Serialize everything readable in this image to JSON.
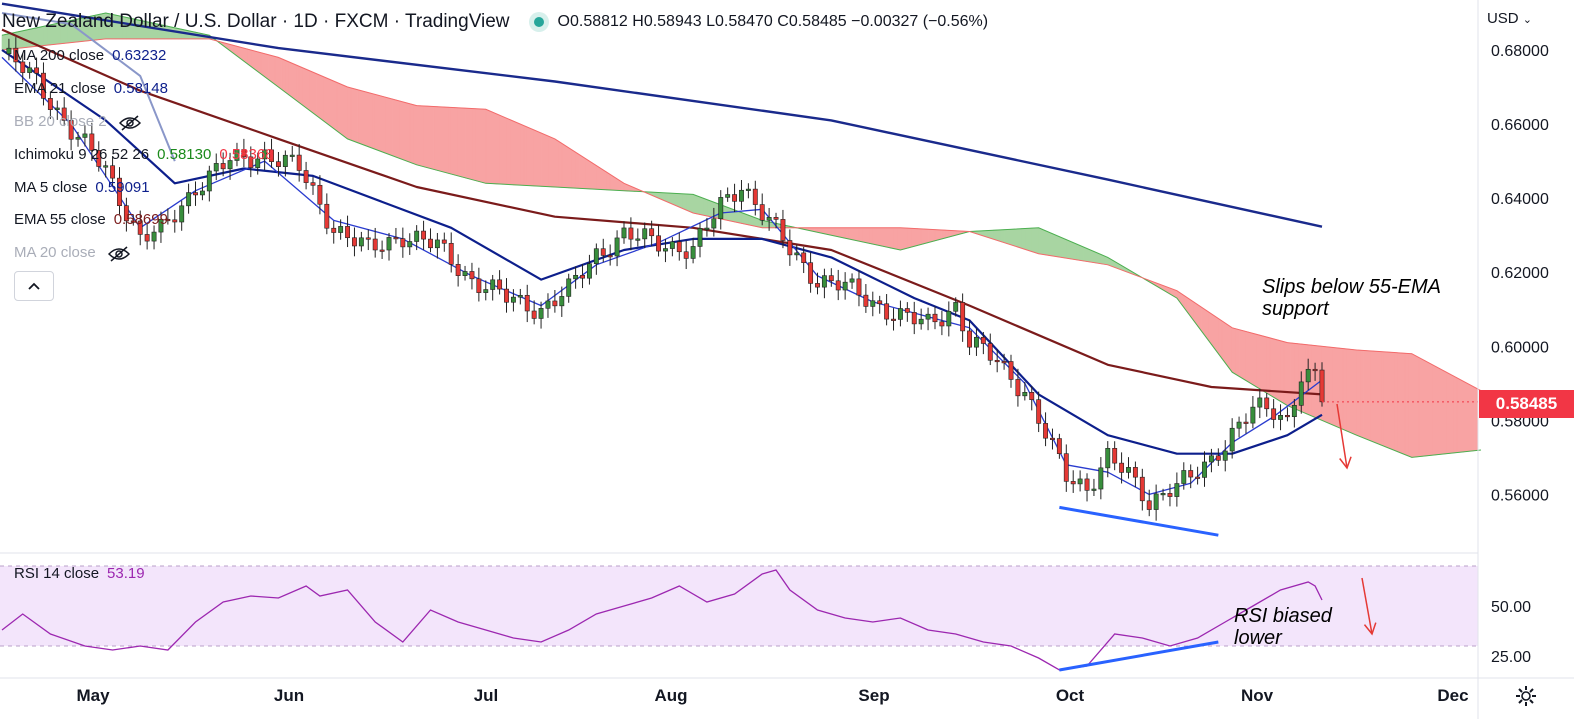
{
  "header": {
    "title": "New Zealand Dollar / U.S. Dollar · 1D · FXCM · TradingView",
    "ohlc": "O0.58812 H0.58943 L0.58470 C0.58485 −0.00327 (−0.56%)"
  },
  "currency_selector": "USD",
  "legend": [
    {
      "label": "MA 200 close",
      "value": "0.63232",
      "color": "#0d1f8c",
      "visible": true
    },
    {
      "label": "EMA 21 close",
      "value": "0.58148",
      "color": "#0d1f8c",
      "visible": true
    },
    {
      "label": "BB 20 close 2",
      "value": "",
      "color": "#a9adb8",
      "visible": false
    },
    {
      "label": "Ichimoku 9 26 52 26",
      "value": "0.58130",
      "value2": "0.58368",
      "color": "#1b8a1b",
      "color2": "#f23645",
      "visible": true
    },
    {
      "label": "MA 5 close",
      "value": "0.59091",
      "color": "#0d1f8c",
      "visible": true
    },
    {
      "label": "EMA 55 close",
      "value": "0.58699",
      "color": "#7b1b1b",
      "visible": true
    },
    {
      "label": "MA 20 close",
      "value": "",
      "color": "#a9adb8",
      "visible": false
    }
  ],
  "rsi_legend": {
    "label": "RSI 14 close",
    "value": "53.19",
    "color": "#9c27b0"
  },
  "last_price_tag": "0.58485",
  "annotations": {
    "ema_note_line1": "Slips below 55-EMA",
    "ema_note_line2": "support",
    "rsi_note_line1": "RSI biased",
    "rsi_note_line2": "lower"
  },
  "colors": {
    "up": "#388e3c",
    "down": "#e53935",
    "ma200": "#1a2a8c",
    "ema21": "#0d1f8c",
    "ema55": "#7b1b1b",
    "ma5": "#2a3ccf",
    "cloud_bear": "#f8a3a3",
    "cloud_bull": "#a8d5a2",
    "rsi": "#9c27b0",
    "rsi_band": "#f3e5fb",
    "divergence": "#2962ff",
    "arrow": "#e53935",
    "bb": "#8a97c9"
  },
  "chart_data": [
    {
      "type": "candlestick",
      "title": "New Zealand Dollar / U.S. Dollar · 1D · FXCM · TradingView",
      "x_ticks": [
        "May",
        "Jun",
        "Jul",
        "Aug",
        "Sep",
        "Oct",
        "Nov",
        "Dec"
      ],
      "y_ticks": [
        "0.68000",
        "0.66000",
        "0.64000",
        "0.62000",
        "0.60000",
        "0.58000",
        "0.56000"
      ],
      "ylim": [
        0.545,
        0.6935
      ],
      "grid": false,
      "close_path": [
        [
          0,
          0.679
        ],
        [
          5,
          0.672
        ],
        [
          10,
          0.658
        ],
        [
          15,
          0.648
        ],
        [
          20,
          0.629
        ],
        [
          23,
          0.631
        ],
        [
          28,
          0.643
        ],
        [
          33,
          0.65
        ],
        [
          38,
          0.652
        ],
        [
          43,
          0.648
        ],
        [
          48,
          0.632
        ],
        [
          53,
          0.626
        ],
        [
          58,
          0.63
        ],
        [
          63,
          0.627
        ],
        [
          68,
          0.618
        ],
        [
          73,
          0.613
        ],
        [
          78,
          0.61
        ],
        [
          82,
          0.615
        ],
        [
          86,
          0.625
        ],
        [
          90,
          0.63
        ],
        [
          95,
          0.628
        ],
        [
          100,
          0.626
        ],
        [
          104,
          0.638
        ],
        [
          107,
          0.644
        ],
        [
          110,
          0.636
        ],
        [
          114,
          0.626
        ],
        [
          118,
          0.618
        ],
        [
          122,
          0.616
        ],
        [
          126,
          0.612
        ],
        [
          130,
          0.608
        ],
        [
          134,
          0.606
        ],
        [
          138,
          0.611
        ],
        [
          140,
          0.601
        ],
        [
          144,
          0.596
        ],
        [
          148,
          0.588
        ],
        [
          151,
          0.576
        ],
        [
          154,
          0.565
        ],
        [
          157,
          0.562
        ],
        [
          160,
          0.57
        ],
        [
          163,
          0.565
        ],
        [
          166,
          0.558
        ],
        [
          169,
          0.562
        ],
        [
          172,
          0.564
        ],
        [
          175,
          0.569
        ],
        [
          178,
          0.577
        ],
        [
          181,
          0.583
        ],
        [
          184,
          0.582
        ],
        [
          186,
          0.58
        ],
        [
          188,
          0.593
        ],
        [
          190,
          0.592
        ],
        [
          191,
          0.585
        ]
      ],
      "candle_range": [
        0,
        191
      ],
      "series": [
        {
          "name": "MA 200 close",
          "points": [
            [
              0,
              0.6925
            ],
            [
              40,
              0.6805
            ],
            [
              80,
              0.6715
            ],
            [
              120,
              0.661
            ],
            [
              160,
              0.645
            ],
            [
              191,
              0.6323
            ]
          ]
        },
        {
          "name": "EMA 55 close",
          "points": [
            [
              0,
              0.6855
            ],
            [
              20,
              0.669
            ],
            [
              40,
              0.656
            ],
            [
              60,
              0.643
            ],
            [
              80,
              0.635
            ],
            [
              100,
              0.632
            ],
            [
              120,
              0.626
            ],
            [
              140,
              0.611
            ],
            [
              160,
              0.595
            ],
            [
              175,
              0.589
            ],
            [
              191,
              0.587
            ]
          ]
        },
        {
          "name": "EMA 21 close",
          "points": [
            [
              0,
              0.68
            ],
            [
              15,
              0.661
            ],
            [
              25,
              0.644
            ],
            [
              35,
              0.648
            ],
            [
              45,
              0.646
            ],
            [
              55,
              0.639
            ],
            [
              65,
              0.632
            ],
            [
              78,
              0.618
            ],
            [
              90,
              0.626
            ],
            [
              100,
              0.629
            ],
            [
              110,
              0.629
            ],
            [
              120,
              0.624
            ],
            [
              132,
              0.613
            ],
            [
              140,
              0.607
            ],
            [
              150,
              0.587
            ],
            [
              160,
              0.576
            ],
            [
              170,
              0.571
            ],
            [
              178,
              0.571
            ],
            [
              186,
              0.576
            ],
            [
              191,
              0.5815
            ]
          ]
        },
        {
          "name": "MA 5 close",
          "points": [
            [
              0,
              0.678
            ],
            [
              10,
              0.66
            ],
            [
              20,
              0.632
            ],
            [
              28,
              0.642
            ],
            [
              38,
              0.65
            ],
            [
              48,
              0.634
            ],
            [
              58,
              0.629
            ],
            [
              68,
              0.619
            ],
            [
              78,
              0.611
            ],
            [
              86,
              0.622
            ],
            [
              95,
              0.628
            ],
            [
              104,
              0.636
            ],
            [
              110,
              0.637
            ],
            [
              118,
              0.619
            ],
            [
              126,
              0.612
            ],
            [
              134,
              0.608
            ],
            [
              140,
              0.605
            ],
            [
              148,
              0.59
            ],
            [
              154,
              0.568
            ],
            [
              160,
              0.566
            ],
            [
              166,
              0.56
            ],
            [
              172,
              0.563
            ],
            [
              178,
              0.574
            ],
            [
              184,
              0.581
            ],
            [
              191,
              0.5909
            ]
          ]
        },
        {
          "name": "Ichimoku Span A",
          "points": [
            [
              0,
              0.684
            ],
            [
              15,
              0.69
            ],
            [
              30,
              0.684
            ],
            [
              40,
              0.67
            ],
            [
              50,
              0.656
            ],
            [
              60,
              0.649
            ],
            [
              70,
              0.644
            ],
            [
              80,
              0.643
            ],
            [
              90,
              0.642
            ],
            [
              100,
              0.641
            ],
            [
              110,
              0.634
            ],
            [
              120,
              0.63
            ],
            [
              130,
              0.626
            ],
            [
              140,
              0.631
            ],
            [
              150,
              0.632
            ],
            [
              160,
              0.624
            ],
            [
              170,
              0.613
            ],
            [
              178,
              0.593
            ],
            [
              186,
              0.584
            ],
            [
              196,
              0.576
            ],
            [
              204,
              0.57
            ],
            [
              214,
              0.572
            ]
          ]
        },
        {
          "name": "Ichimoku Span B",
          "points": [
            [
              0,
              0.68
            ],
            [
              15,
              0.683
            ],
            [
              30,
              0.683
            ],
            [
              40,
              0.678
            ],
            [
              50,
              0.67
            ],
            [
              60,
              0.665
            ],
            [
              70,
              0.664
            ],
            [
              80,
              0.656
            ],
            [
              90,
              0.644
            ],
            [
              100,
              0.636
            ],
            [
              110,
              0.632
            ],
            [
              120,
              0.632
            ],
            [
              130,
              0.632
            ],
            [
              140,
              0.631
            ],
            [
              150,
              0.625
            ],
            [
              160,
              0.622
            ],
            [
              170,
              0.615
            ],
            [
              178,
              0.605
            ],
            [
              186,
              0.601
            ],
            [
              196,
              0.599
            ],
            [
              204,
              0.598
            ],
            [
              214,
              0.588
            ]
          ]
        },
        {
          "name": "BB 20 close 2",
          "points": [
            [
              0,
              0.69
            ],
            [
              10,
              0.687
            ],
            [
              20,
              0.673
            ],
            [
              25,
              0.65
            ]
          ]
        }
      ],
      "divergence_line": [
        [
          153,
          0.5565
        ],
        [
          176,
          0.549
        ]
      ]
    },
    {
      "type": "line",
      "title": "RSI 14 close",
      "y_ticks": [
        "50.00",
        "25.00"
      ],
      "ylim": [
        15,
        75
      ],
      "band": [
        30,
        70
      ],
      "series": [
        {
          "name": "RSI 14 close",
          "points": [
            [
              0,
              38
            ],
            [
              3,
              46
            ],
            [
              7,
              36
            ],
            [
              12,
              30
            ],
            [
              16,
              28
            ],
            [
              20,
              30
            ],
            [
              24,
              28
            ],
            [
              28,
              42
            ],
            [
              32,
              52
            ],
            [
              36,
              55
            ],
            [
              40,
              54
            ],
            [
              44,
              60
            ],
            [
              46,
              55
            ],
            [
              50,
              58
            ],
            [
              54,
              42
            ],
            [
              58,
              32
            ],
            [
              62,
              48
            ],
            [
              66,
              42
            ],
            [
              70,
              38
            ],
            [
              74,
              34
            ],
            [
              78,
              32
            ],
            [
              82,
              38
            ],
            [
              86,
              46
            ],
            [
              90,
              50
            ],
            [
              94,
              54
            ],
            [
              98,
              60
            ],
            [
              102,
              52
            ],
            [
              106,
              56
            ],
            [
              110,
              66
            ],
            [
              112,
              68
            ],
            [
              114,
              58
            ],
            [
              118,
              48
            ],
            [
              122,
              44
            ],
            [
              126,
              42
            ],
            [
              130,
              44
            ],
            [
              134,
              38
            ],
            [
              138,
              36
            ],
            [
              142,
              32
            ],
            [
              146,
              30
            ],
            [
              150,
              24
            ],
            [
              153,
              18
            ],
            [
              157,
              20
            ],
            [
              161,
              36
            ],
            [
              165,
              34
            ],
            [
              169,
              30
            ],
            [
              173,
              34
            ],
            [
              177,
              42
            ],
            [
              181,
              50
            ],
            [
              185,
              58
            ],
            [
              189,
              62
            ],
            [
              190,
              60
            ],
            [
              191,
              53
            ]
          ]
        }
      ],
      "divergence_line": [
        [
          153,
          18
        ],
        [
          176,
          32
        ]
      ]
    }
  ]
}
